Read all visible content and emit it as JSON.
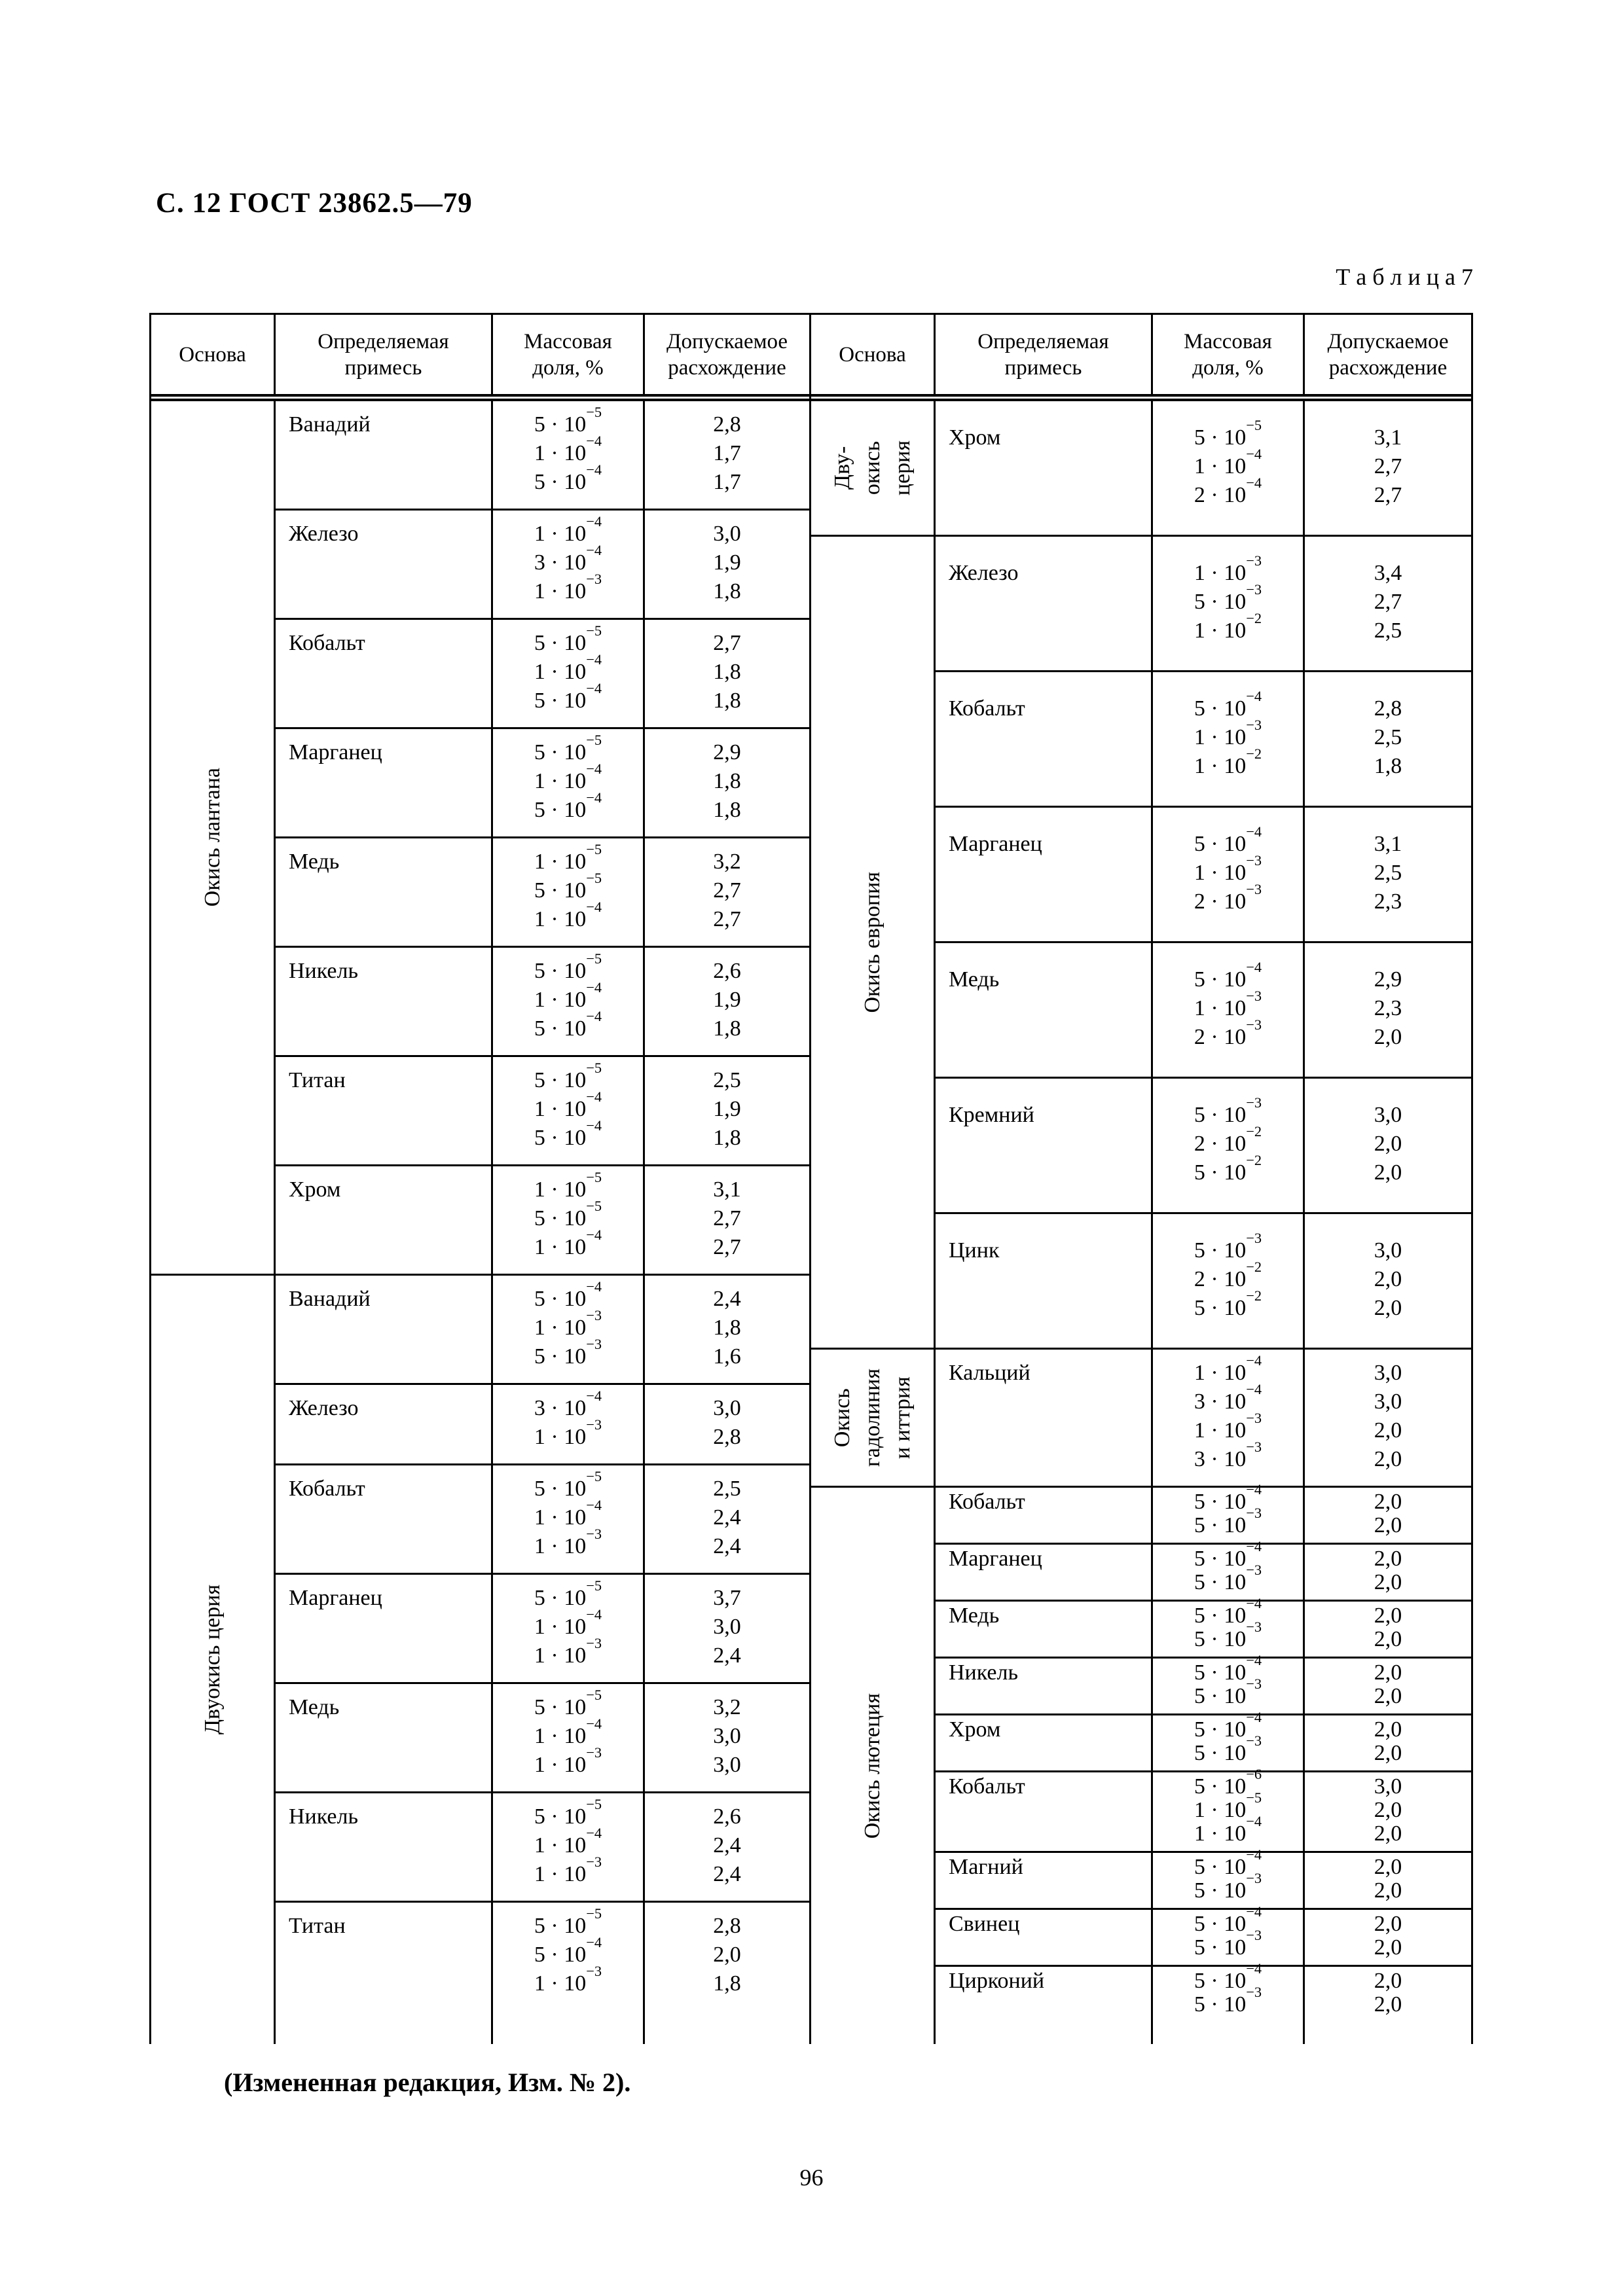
{
  "page": {
    "header": "С. 12 ГОСТ 23862.5—79",
    "table_label": "Т а б л и ц а  7",
    "footer_note": "(Измененная редакция, Изм. № 2).",
    "page_number": "96"
  },
  "columns": {
    "base": "Основа",
    "impurity": "Определяемая\nпримесь",
    "fraction": "Массовая\nдоля, %",
    "discrepancy": "Допускаемое\nрасхождение"
  },
  "halves": [
    {
      "side": "left",
      "bases": [
        {
          "name": "Окись лантана",
          "density": "normal",
          "groups": [
            {
              "impurity": "Ванадий",
              "rows": [
                [
                  "5 · 10^−5",
                  "2,8"
                ],
                [
                  "1 · 10^−4",
                  "1,7"
                ],
                [
                  "5 · 10^−4",
                  "1,7"
                ]
              ]
            },
            {
              "impurity": "Железо",
              "rows": [
                [
                  "1 · 10^−4",
                  "3,0"
                ],
                [
                  "3 · 10^−4",
                  "1,9"
                ],
                [
                  "1 · 10^−3",
                  "1,8"
                ]
              ]
            },
            {
              "impurity": "Кобальт",
              "rows": [
                [
                  "5 · 10^−5",
                  "2,7"
                ],
                [
                  "1 · 10^−4",
                  "1,8"
                ],
                [
                  "5 · 10^−4",
                  "1,8"
                ]
              ]
            },
            {
              "impurity": "Марганец",
              "rows": [
                [
                  "5 · 10^−5",
                  "2,9"
                ],
                [
                  "1 · 10^−4",
                  "1,8"
                ],
                [
                  "5 · 10^−4",
                  "1,8"
                ]
              ]
            },
            {
              "impurity": "Медь",
              "rows": [
                [
                  "1 · 10^−5",
                  "3,2"
                ],
                [
                  "5 · 10^−5",
                  "2,7"
                ],
                [
                  "1 · 10^−4",
                  "2,7"
                ]
              ]
            },
            {
              "impurity": "Никель",
              "rows": [
                [
                  "5 · 10^−5",
                  "2,6"
                ],
                [
                  "1 · 10^−4",
                  "1,9"
                ],
                [
                  "5 · 10^−4",
                  "1,8"
                ]
              ]
            },
            {
              "impurity": "Титан",
              "rows": [
                [
                  "5 · 10^−5",
                  "2,5"
                ],
                [
                  "1 · 10^−4",
                  "1,9"
                ],
                [
                  "5 · 10^−4",
                  "1,8"
                ]
              ]
            },
            {
              "impurity": "Хром",
              "rows": [
                [
                  "1 · 10^−5",
                  "3,1"
                ],
                [
                  "5 · 10^−5",
                  "2,7"
                ],
                [
                  "1 · 10^−4",
                  "2,7"
                ]
              ]
            }
          ]
        },
        {
          "name": "Двуокись церия",
          "density": "normal",
          "groups": [
            {
              "impurity": "Ванадий",
              "rows": [
                [
                  "5 · 10^−4",
                  "2,4"
                ],
                [
                  "1 · 10^−3",
                  "1,8"
                ],
                [
                  "5 · 10^−3",
                  "1,6"
                ]
              ]
            },
            {
              "impurity": "Железо",
              "rows": [
                [
                  "3 · 10^−4",
                  "3,0"
                ],
                [
                  "1 · 10^−3",
                  "2,8"
                ]
              ]
            },
            {
              "impurity": "Кобальт",
              "rows": [
                [
                  "5 · 10^−5",
                  "2,5"
                ],
                [
                  "1 · 10^−4",
                  "2,4"
                ],
                [
                  "1 · 10^−3",
                  "2,4"
                ]
              ]
            },
            {
              "impurity": "Марганец",
              "rows": [
                [
                  "5 · 10^−5",
                  "3,7"
                ],
                [
                  "1 · 10^−4",
                  "3,0"
                ],
                [
                  "1 · 10^−3",
                  "2,4"
                ]
              ]
            },
            {
              "impurity": "Медь",
              "rows": [
                [
                  "5 · 10^−5",
                  "3,2"
                ],
                [
                  "1 · 10^−4",
                  "3,0"
                ],
                [
                  "1 · 10^−3",
                  "3,0"
                ]
              ]
            },
            {
              "impurity": "Никель",
              "rows": [
                [
                  "5 · 10^−5",
                  "2,6"
                ],
                [
                  "1 · 10^−4",
                  "2,4"
                ],
                [
                  "1 · 10^−3",
                  "2,4"
                ]
              ]
            },
            {
              "impurity": "Титан",
              "rows": [
                [
                  "5 · 10^−5",
                  "2,8"
                ],
                [
                  "5 · 10^−4",
                  "2,0"
                ],
                [
                  "1 · 10^−3",
                  "1,8"
                ]
              ]
            }
          ]
        }
      ]
    },
    {
      "side": "right",
      "bases": [
        {
          "name": "Дву-\nокись\nцерия",
          "density": "roomy",
          "groups": [
            {
              "impurity": "Хром",
              "rows": [
                [
                  "5 · 10^−5",
                  "3,1"
                ],
                [
                  "1 · 10^−4",
                  "2,7"
                ],
                [
                  "2 · 10^−4",
                  "2,7"
                ]
              ]
            }
          ]
        },
        {
          "name": "Окись европия",
          "density": "roomy",
          "groups": [
            {
              "impurity": "Железо",
              "rows": [
                [
                  "1 · 10^−3",
                  "3,4"
                ],
                [
                  "5 · 10^−3",
                  "2,7"
                ],
                [
                  "1 · 10^−2",
                  "2,5"
                ]
              ]
            },
            {
              "impurity": "Кобальт",
              "rows": [
                [
                  "5 · 10^−4",
                  "2,8"
                ],
                [
                  "1 · 10^−3",
                  "2,5"
                ],
                [
                  "1 · 10^−2",
                  "1,8"
                ]
              ]
            },
            {
              "impurity": "Марганец",
              "rows": [
                [
                  "5 · 10^−4",
                  "3,1"
                ],
                [
                  "1 · 10^−3",
                  "2,5"
                ],
                [
                  "2 · 10^−3",
                  "2,3"
                ]
              ]
            },
            {
              "impurity": "Медь",
              "rows": [
                [
                  "5 · 10^−4",
                  "2,9"
                ],
                [
                  "1 · 10^−3",
                  "2,3"
                ],
                [
                  "2 · 10^−3",
                  "2,0"
                ]
              ]
            },
            {
              "impurity": "Кремний",
              "rows": [
                [
                  "5 · 10^−3",
                  "3,0"
                ],
                [
                  "2 · 10^−2",
                  "2,0"
                ],
                [
                  "5 · 10^−2",
                  "2,0"
                ]
              ]
            },
            {
              "impurity": "Цинк",
              "rows": [
                [
                  "5 · 10^−3",
                  "3,0"
                ],
                [
                  "2 · 10^−2",
                  "2,0"
                ],
                [
                  "5 · 10^−2",
                  "2,0"
                ]
              ]
            }
          ]
        },
        {
          "name": "Окись\nгадолиния\nи иттрия",
          "density": "normal",
          "groups": [
            {
              "impurity": "Кальций",
              "rows": [
                [
                  "1 · 10^−4",
                  "3,0"
                ],
                [
                  "3 · 10^−4",
                  "3,0"
                ],
                [
                  "1 · 10^−3",
                  "2,0"
                ],
                [
                  "3 · 10^−3",
                  "2,0"
                ]
              ]
            }
          ]
        },
        {
          "name": "Окись лютеция",
          "density": "compact",
          "groups": [
            {
              "impurity": "Кобальт",
              "rows": [
                [
                  "5 · 10^−4",
                  "2,0"
                ],
                [
                  "5 · 10^−3",
                  "2,0"
                ]
              ]
            },
            {
              "impurity": "Марганец",
              "rows": [
                [
                  "5 · 10^−4",
                  "2,0"
                ],
                [
                  "5 · 10^−3",
                  "2,0"
                ]
              ]
            },
            {
              "impurity": "Медь",
              "rows": [
                [
                  "5 · 10^−4",
                  "2,0"
                ],
                [
                  "5 · 10^−3",
                  "2,0"
                ]
              ]
            },
            {
              "impurity": "Никель",
              "rows": [
                [
                  "5 · 10^−4",
                  "2,0"
                ],
                [
                  "5 · 10^−3",
                  "2,0"
                ]
              ]
            },
            {
              "impurity": "Хром",
              "rows": [
                [
                  "5 · 10^−4",
                  "2,0"
                ],
                [
                  "5 · 10^−3",
                  "2,0"
                ]
              ]
            },
            {
              "impurity": "Кобальт",
              "rows": [
                [
                  "5 · 10^−6",
                  "3,0"
                ],
                [
                  "1 · 10^−5",
                  "2,0"
                ],
                [
                  "1 · 10^−4",
                  "2,0"
                ]
              ]
            },
            {
              "impurity": "Магний",
              "rows": [
                [
                  "5 · 10^−4",
                  "2,0"
                ],
                [
                  "5 · 10^−3",
                  "2,0"
                ]
              ]
            },
            {
              "impurity": "Свинец",
              "rows": [
                [
                  "5 · 10^−4",
                  "2,0"
                ],
                [
                  "5 · 10^−3",
                  "2,0"
                ]
              ]
            },
            {
              "impurity": "Цирконий",
              "rows": [
                [
                  "5 · 10^−4",
                  "2,0"
                ],
                [
                  "5 · 10^−3",
                  "2,0"
                ]
              ]
            }
          ]
        }
      ]
    }
  ]
}
